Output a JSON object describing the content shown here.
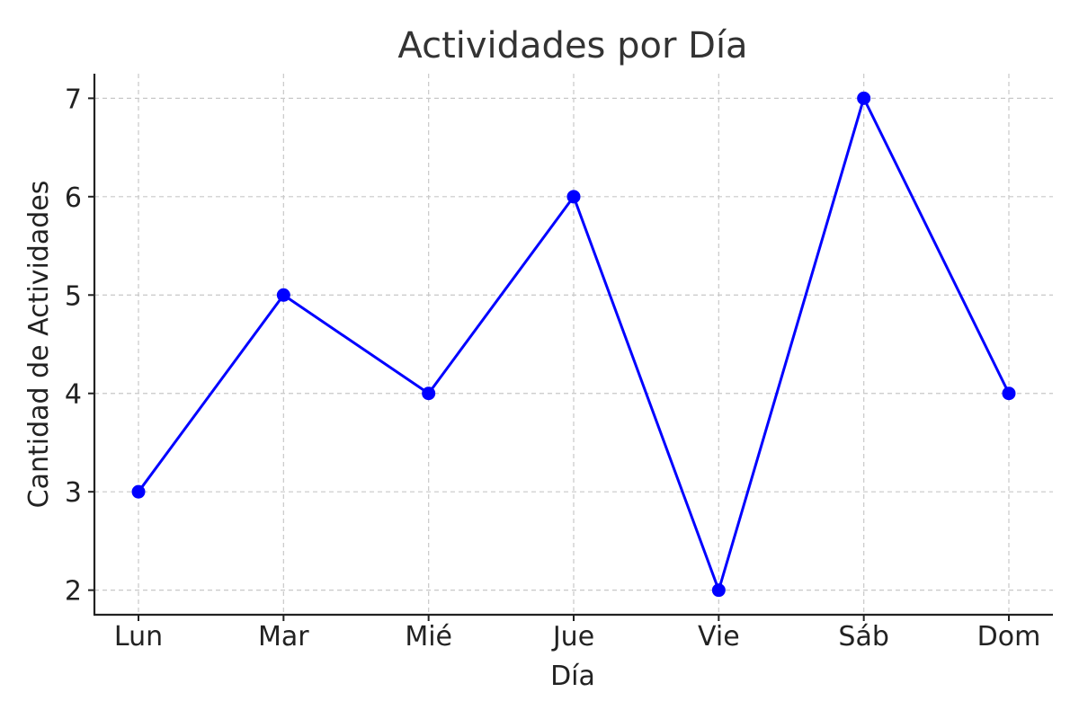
{
  "chart_data": {
    "type": "line",
    "title": "Actividades por Día",
    "xlabel": "Día",
    "ylabel": "Cantidad de Actividades",
    "categories": [
      "Lun",
      "Mar",
      "Mié",
      "Jue",
      "Vie",
      "Sáb",
      "Dom"
    ],
    "series": [
      {
        "values": [
          3,
          5,
          4,
          6,
          2,
          7,
          4
        ],
        "color": "#0000ff",
        "marker": "circle"
      }
    ],
    "yticks": [
      2,
      3,
      4,
      5,
      6,
      7
    ],
    "ylim": [
      1.75,
      7.25
    ],
    "grid": true,
    "legend": "none"
  }
}
